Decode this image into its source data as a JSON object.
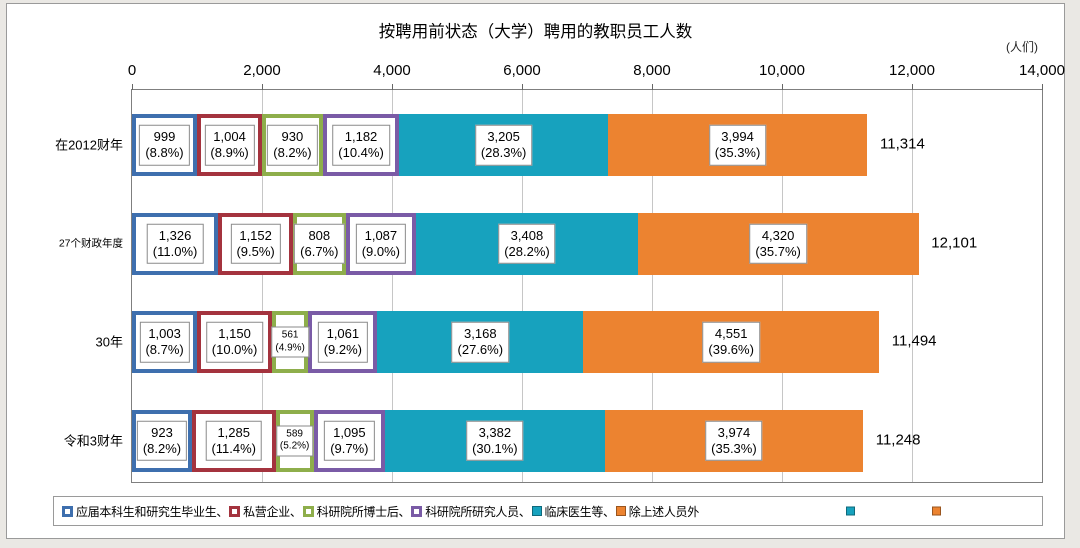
{
  "chart_data": {
    "type": "bar",
    "orientation": "horizontal",
    "stacked": true,
    "title": "按聘用前状态（大学）聘用的教职员工人数",
    "unit_label": "(人们)",
    "x_max": 14000,
    "x_ticks": [
      "0",
      "2,000",
      "4,000",
      "6,000",
      "8,000",
      "10,000",
      "12,000",
      "14,000"
    ],
    "grid": true,
    "legend_position": "bottom",
    "series": [
      {
        "name": "应届本科生和研究生毕业生",
        "color": "#3E6FAE",
        "fill": "outline"
      },
      {
        "name": "私营企业",
        "color": "#A4333E",
        "fill": "outline"
      },
      {
        "name": "科研院所博士后",
        "color": "#8EAE4B",
        "fill": "outline"
      },
      {
        "name": "科研院所研究人员",
        "color": "#7A5BA6",
        "fill": "outline"
      },
      {
        "name": "临床医生等",
        "color": "#17A2BE",
        "fill": "solid"
      },
      {
        "name": "除上述人员外",
        "color": "#EC8330",
        "fill": "solid"
      }
    ],
    "rows": [
      {
        "label": "在2012财年",
        "small_label": false,
        "values": [
          999,
          1004,
          930,
          1182,
          3205,
          3994
        ],
        "value_labels": [
          "999",
          "1,004",
          "930",
          "1,182",
          "3,205",
          "3,994"
        ],
        "pct_labels": [
          "(8.8%)",
          "(8.9%)",
          "(8.2%)",
          "(10.4%)",
          "(28.3%)",
          "(35.3%)"
        ],
        "total": "11,314"
      },
      {
        "label": "27个财政年度",
        "small_label": true,
        "values": [
          1326,
          1152,
          808,
          1087,
          3408,
          4320
        ],
        "value_labels": [
          "1,326",
          "1,152",
          "808",
          "1,087",
          "3,408",
          "4,320"
        ],
        "pct_labels": [
          "(11.0%)",
          "(9.5%)",
          "(6.7%)",
          "(9.0%)",
          "(28.2%)",
          "(35.7%)"
        ],
        "total": "12,101"
      },
      {
        "label": "30年",
        "small_label": false,
        "values": [
          1003,
          1150,
          561,
          1061,
          3168,
          4551
        ],
        "value_labels": [
          "1,003",
          "1,150",
          "561",
          "1,061",
          "3,168",
          "4,551"
        ],
        "pct_labels": [
          "(8.7%)",
          "(10.0%)",
          "(4.9%)",
          "(9.2%)",
          "(27.6%)",
          "(39.6%)"
        ],
        "total": "11,494"
      },
      {
        "label": "令和3财年",
        "small_label": false,
        "values": [
          923,
          1285,
          589,
          1095,
          3382,
          3974
        ],
        "value_labels": [
          "923",
          "1,285",
          "589",
          "1,095",
          "3,382",
          "3,974"
        ],
        "pct_labels": [
          "(8.2%)",
          "(11.4%)",
          "(5.2%)",
          "(9.7%)",
          "(30.1%)",
          "(35.3%)"
        ],
        "total": "11,248"
      }
    ],
    "legend_separator": "、",
    "legend_detached_markers": [
      "#17A2BE",
      "#EC8330"
    ]
  }
}
